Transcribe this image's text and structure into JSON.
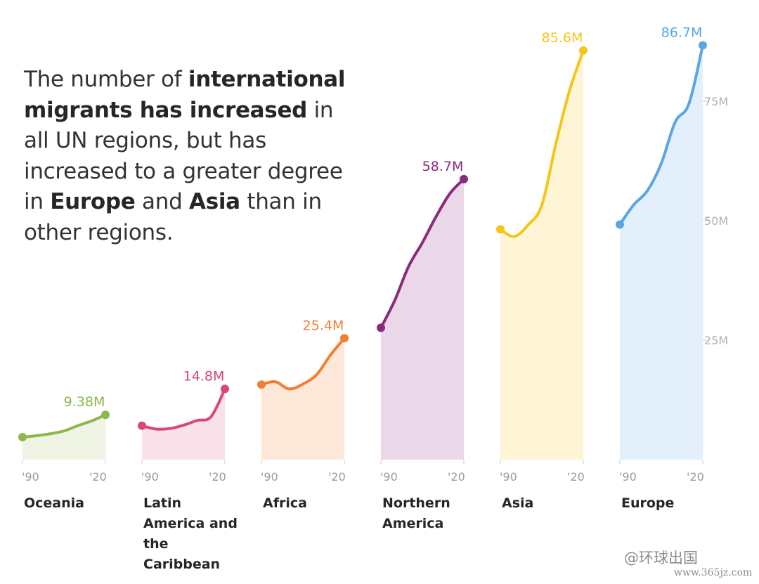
{
  "headline": {
    "p1": "The number of ",
    "b1": "international migrants has increased",
    "p2": " in all UN regions, but has increased to a greater degree in ",
    "b2": "Europe",
    "p3": " and ",
    "b3": "Asia",
    "p4": " than in other regions."
  },
  "watermark": {
    "text": "@环球出国",
    "url": "www.365jz.com"
  },
  "chart_data": {
    "type": "area",
    "title": "",
    "xlabel": "",
    "ylabel": "",
    "ylim": [
      0,
      95
    ],
    "yticks": [
      {
        "value": 25,
        "label": "25M"
      },
      {
        "value": 50,
        "label": "50M"
      },
      {
        "value": 75,
        "label": "75M"
      }
    ],
    "x_tick_labels": [
      "'90",
      "'20"
    ],
    "x": [
      1990,
      1995,
      2000,
      2005,
      2010,
      2015,
      2020
    ],
    "grid": false,
    "legend": "none",
    "series": [
      {
        "name": "Oceania",
        "color": "#8cb84b",
        "fill": "#eef3e3",
        "end_label": "9.38M",
        "values": [
          4.7,
          5.0,
          5.4,
          6.0,
          7.1,
          8.1,
          9.38
        ]
      },
      {
        "name": "Latin America and the Caribbean",
        "color": "#d8467c",
        "fill": "#f9e1ea",
        "end_label": "14.8M",
        "values": [
          7.1,
          6.4,
          6.5,
          7.2,
          8.2,
          9.0,
          14.8
        ]
      },
      {
        "name": "Africa",
        "color": "#f07f33",
        "fill": "#fde7d8",
        "end_label": "25.4M",
        "values": [
          15.7,
          16.3,
          14.8,
          15.8,
          17.8,
          21.9,
          25.4
        ]
      },
      {
        "name": "Northern America",
        "color": "#8a2a7b",
        "fill": "#ead7e8",
        "end_label": "58.7M",
        "values": [
          27.6,
          33.3,
          40.4,
          45.4,
          50.9,
          55.7,
          58.7
        ]
      },
      {
        "name": "Asia",
        "color": "#f5c518",
        "fill": "#fdf5d6",
        "end_label": "85.6M",
        "values": [
          48.2,
          46.7,
          49.1,
          53.3,
          65.9,
          77.2,
          85.6
        ]
      },
      {
        "name": "Europe",
        "color": "#5aa6e3",
        "fill": "#e3f0fb",
        "end_label": "86.7M",
        "values": [
          49.2,
          53.3,
          56.3,
          62.0,
          70.6,
          74.5,
          86.7
        ]
      }
    ]
  }
}
